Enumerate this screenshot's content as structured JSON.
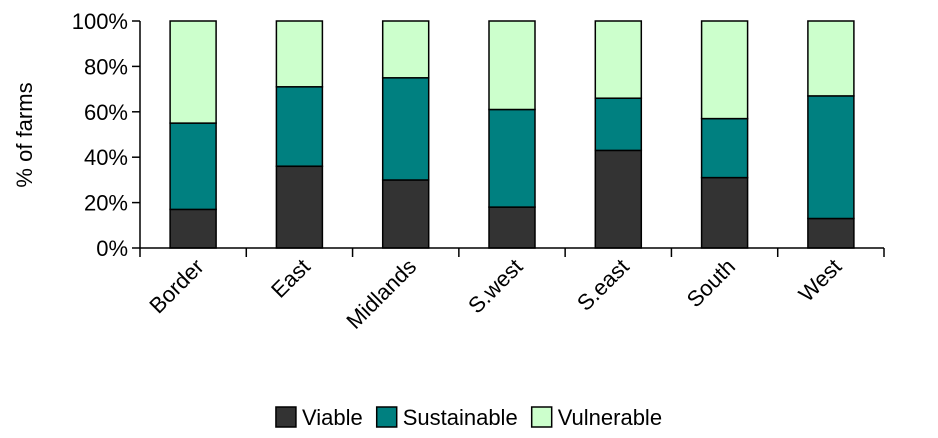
{
  "chart_data": {
    "type": "bar",
    "stacked": true,
    "percent_stacked": true,
    "title": "",
    "xlabel": "",
    "ylabel": "% of farms",
    "ylim": [
      0,
      100
    ],
    "yticks": [
      "0%",
      "20%",
      "40%",
      "60%",
      "80%",
      "100%"
    ],
    "categories": [
      "Border",
      "East",
      "Midlands",
      "S.west",
      "S.east",
      "South",
      "West"
    ],
    "series": [
      {
        "name": "Viable",
        "color": "#333333",
        "values": [
          17,
          36,
          30,
          18,
          43,
          31,
          13
        ]
      },
      {
        "name": "Sustainable",
        "color": "#008080",
        "values": [
          38,
          35,
          45,
          43,
          23,
          26,
          54
        ]
      },
      {
        "name": "Vulnerable",
        "color": "#ccffcc",
        "values": [
          45,
          29,
          25,
          39,
          34,
          43,
          33
        ]
      }
    ],
    "grid": false,
    "legend_position": "bottom"
  }
}
